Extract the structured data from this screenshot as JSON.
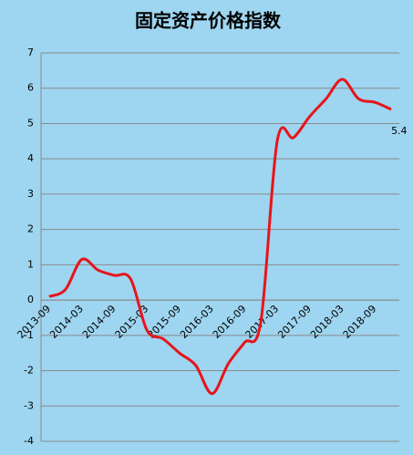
{
  "chart_data": {
    "type": "line",
    "title": "固定资产价格指数",
    "categories": [
      "2013-09",
      null,
      "2014-03",
      null,
      "2014-09",
      null,
      "2015-03",
      null,
      "2015-09",
      null,
      "2016-03",
      null,
      "2016-09",
      null,
      "2017-03",
      null,
      "2017-09",
      null,
      "2018-03",
      null,
      "2018-09",
      null
    ],
    "series": [
      {
        "color": "#e8141b",
        "values": [
          0.1,
          0.3,
          1.15,
          0.85,
          0.7,
          0.6,
          -0.85,
          -1.1,
          -1.5,
          -1.85,
          -2.65,
          -1.8,
          -1.2,
          -0.6,
          4.5,
          4.6,
          5.2,
          5.7,
          6.25,
          5.7,
          5.6,
          5.4
        ],
        "value_labels": [
          null,
          null,
          null,
          null,
          null,
          null,
          null,
          null,
          null,
          null,
          null,
          null,
          null,
          null,
          null,
          null,
          null,
          null,
          null,
          null,
          null,
          "5.4"
        ]
      }
    ],
    "ylim": [
      -4,
      7
    ],
    "yticks": [
      -4,
      -3,
      -2,
      -1,
      0,
      1,
      2,
      3,
      4,
      5,
      6,
      7
    ],
    "grid": true
  }
}
